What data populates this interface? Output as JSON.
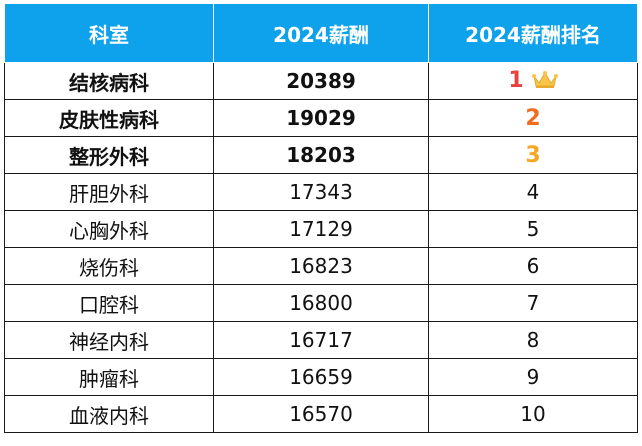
{
  "headers": [
    "科室",
    "2024薪酬",
    "2024薪酬排名"
  ],
  "colors": {
    "header_bg": "#0ea2ec",
    "rank1": "#e8423f",
    "rank2": "#f06c1e",
    "rank3": "#f5a623",
    "crown": "#f7c548"
  },
  "rows": [
    {
      "dept": "结核病科",
      "salary": "20389",
      "rank": "1",
      "icon": "crown-icon"
    },
    {
      "dept": "皮肤性病科",
      "salary": "19029",
      "rank": "2"
    },
    {
      "dept": "整形外科",
      "salary": "18203",
      "rank": "3"
    },
    {
      "dept": "肝胆外科",
      "salary": "17343",
      "rank": "4"
    },
    {
      "dept": "心胸外科",
      "salary": "17129",
      "rank": "5"
    },
    {
      "dept": "烧伤科",
      "salary": "16823",
      "rank": "6"
    },
    {
      "dept": "口腔科",
      "salary": "16800",
      "rank": "7"
    },
    {
      "dept": "神经内科",
      "salary": "16717",
      "rank": "8"
    },
    {
      "dept": "肿瘤科",
      "salary": "16659",
      "rank": "9"
    },
    {
      "dept": "血液内科",
      "salary": "16570",
      "rank": "10"
    }
  ]
}
